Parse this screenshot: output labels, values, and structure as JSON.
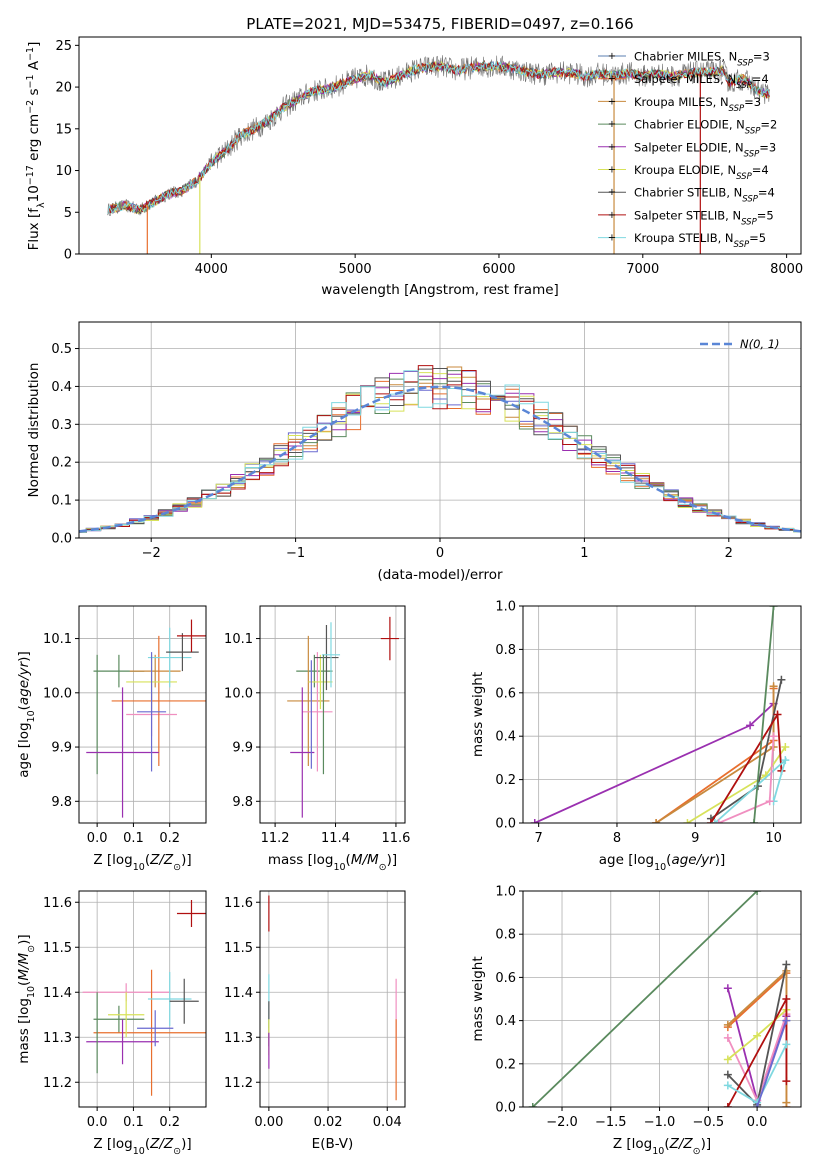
{
  "page_title": "PLATE=2021, MJD=53475, FIBERID=0497, z=0.166",
  "chart_data": [
    {
      "id": "spectrum",
      "type": "line",
      "title": "PLATE=2021, MJD=53475, FIBERID=0497, z=0.166",
      "xlabel": "wavelength [Angstrom, rest frame]",
      "ylabel": "Flux [f_λ10^-17 erg cm^-2 s^-1 A^-1]",
      "xlim": [
        3080,
        8100
      ],
      "ylim": [
        0,
        26
      ],
      "xticks": [
        4000,
        5000,
        6000,
        7000,
        8000
      ],
      "yticks": [
        0,
        5,
        10,
        15,
        20,
        25
      ],
      "grid": false,
      "legend_position": "top-right",
      "continuum_anchors": [
        [
          3280,
          5.3
        ],
        [
          3400,
          5.8
        ],
        [
          3500,
          5.3
        ],
        [
          3600,
          6.2
        ],
        [
          3700,
          7.2
        ],
        [
          3800,
          7.6
        ],
        [
          3900,
          8.8
        ],
        [
          4000,
          11.0
        ],
        [
          4100,
          12.3
        ],
        [
          4200,
          14.2
        ],
        [
          4300,
          15.0
        ],
        [
          4400,
          16.0
        ],
        [
          4500,
          17.5
        ],
        [
          4600,
          18.5
        ],
        [
          4700,
          19.5
        ],
        [
          4800,
          19.7
        ],
        [
          4900,
          20.3
        ],
        [
          5000,
          21.0
        ],
        [
          5100,
          21.5
        ],
        [
          5200,
          20.5
        ],
        [
          5300,
          21.2
        ],
        [
          5400,
          22.0
        ],
        [
          5500,
          22.4
        ],
        [
          5600,
          22.5
        ],
        [
          5700,
          22.0
        ],
        [
          5800,
          22.3
        ],
        [
          5900,
          22.5
        ],
        [
          6000,
          22.5
        ],
        [
          6100,
          22.2
        ],
        [
          6200,
          21.8
        ],
        [
          6300,
          21.5
        ],
        [
          6400,
          21.8
        ],
        [
          6500,
          21.7
        ],
        [
          6600,
          21.3
        ],
        [
          6700,
          21.6
        ],
        [
          6800,
          21.4
        ],
        [
          6900,
          21.7
        ],
        [
          7000,
          21.3
        ],
        [
          7100,
          21.6
        ],
        [
          7200,
          21.3
        ],
        [
          7300,
          21.6
        ],
        [
          7400,
          21.8
        ],
        [
          7500,
          21.8
        ],
        [
          7560,
          22.0
        ],
        [
          7600,
          20.5
        ],
        [
          7700,
          21.0
        ],
        [
          7800,
          19.5
        ],
        [
          7880,
          19.2
        ]
      ],
      "series": [
        {
          "name": "Chabrier MILES, N_SSP=3",
          "color": "#5b7fb0"
        },
        {
          "name": "Salpeter MILES, N_SSP=4",
          "color": "#e86f2e"
        },
        {
          "name": "Kroupa MILES, N_SSP=3",
          "color": "#c88a3e"
        },
        {
          "name": "Chabrier ELODIE, N_SSP=2",
          "color": "#5a8a5e"
        },
        {
          "name": "Salpeter ELODIE, N_SSP=3",
          "color": "#9a30b0"
        },
        {
          "name": "Kroupa ELODIE, N_SSP=4",
          "color": "#d7e25a"
        },
        {
          "name": "Chabrier STELIB, N_SSP=4",
          "color": "#555555"
        },
        {
          "name": "Salpeter STELIB, N_SSP=5",
          "color": "#b01010"
        },
        {
          "name": "Kroupa STELIB, N_SSP=5",
          "color": "#7fd8e0"
        }
      ],
      "dropouts": [
        [
          3555,
          "#e86f2e"
        ],
        [
          3920,
          "#d7e25a"
        ],
        [
          6800,
          "#c88a3e"
        ],
        [
          7400,
          "#b01010"
        ]
      ]
    },
    {
      "id": "residual-histogram",
      "type": "bar",
      "xlabel": "(data-model)/error",
      "ylabel": "Normed distribution",
      "xlim": [
        -2.5,
        2.5
      ],
      "ylim": [
        0,
        0.57
      ],
      "xticks": [
        -2,
        -1,
        0,
        1,
        2
      ],
      "yticks": [
        0.0,
        0.1,
        0.2,
        0.3,
        0.4,
        0.5
      ],
      "grid": true,
      "bin_width": 0.1,
      "legend": {
        "label": "N(0, 1)",
        "position": "top-right"
      },
      "series_colors": [
        "#6a6ad0",
        "#e86f2e",
        "#c88a3e",
        "#5a8a5e",
        "#9a30b0",
        "#d7e25a",
        "#555555",
        "#b01010",
        "#7fd8e0"
      ],
      "gaussian_color": "#5a86d6"
    },
    {
      "id": "age-vs-Z",
      "type": "scatter",
      "xlabel": "Z [log10(Z/Z⊙)]",
      "ylabel": "age [log10(age/yr)]",
      "xlim": [
        -0.05,
        0.3
      ],
      "ylim": [
        9.76,
        10.16
      ],
      "xticks": [
        0.0,
        0.1,
        0.2
      ],
      "yticks": [
        9.8,
        9.9,
        10.0,
        10.1
      ],
      "grid": true,
      "points": [
        {
          "x": 0.06,
          "xerr": 0.07,
          "y": 10.04,
          "yerr": 0.03,
          "color": "#5a8a5e"
        },
        {
          "x": 0.16,
          "xerr": 0.07,
          "y": 10.04,
          "yerr": 0.03,
          "color": "#c88a3e"
        },
        {
          "x": 0.0,
          "xerr": 0.0,
          "y": 9.96,
          "yerr": 0.11,
          "color": "#5a8a5e"
        },
        {
          "x": 0.15,
          "xerr": 0.07,
          "y": 9.96,
          "yerr": 0.04,
          "color": "#f08fc0"
        },
        {
          "x": 0.17,
          "xerr": 0.13,
          "y": 9.985,
          "yerr": 0.12,
          "color": "#e86f2e"
        },
        {
          "x": 0.07,
          "xerr": 0.1,
          "y": 9.89,
          "yerr": 0.12,
          "color": "#9a30b0"
        },
        {
          "x": 0.15,
          "xerr": 0.07,
          "y": 10.02,
          "yerr": 0.05,
          "color": "#d7e25a"
        },
        {
          "x": 0.2,
          "xerr": 0.06,
          "y": 10.065,
          "yerr": 0.055,
          "color": "#7fd8e0"
        },
        {
          "x": 0.235,
          "xerr": 0.045,
          "y": 10.075,
          "yerr": 0.035,
          "color": "#555555"
        },
        {
          "x": 0.26,
          "xerr": 0.04,
          "y": 10.105,
          "yerr": 0.03,
          "color": "#b01010"
        },
        {
          "x": 0.15,
          "xerr": 0.04,
          "y": 9.965,
          "yerr": 0.11,
          "color": "#6a6ad0"
        }
      ]
    },
    {
      "id": "age-vs-mass",
      "type": "scatter",
      "xlabel": "mass [log10(M/M⊙)]",
      "ylabel": "",
      "xlim": [
        11.15,
        11.63
      ],
      "ylim": [
        9.76,
        10.16
      ],
      "xticks": [
        11.2,
        11.4,
        11.6
      ],
      "yticks": [
        9.8,
        9.9,
        10.0,
        10.1
      ],
      "grid": true,
      "points": [
        {
          "x": 11.33,
          "xerr": 0.06,
          "y": 10.04,
          "yerr": 0.03,
          "color": "#5a8a5e"
        },
        {
          "x": 11.31,
          "xerr": 0.07,
          "y": 9.985,
          "yerr": 0.12,
          "color": "#c88a3e"
        },
        {
          "x": 11.34,
          "xerr": 0.05,
          "y": 9.965,
          "yerr": 0.11,
          "color": "#f08fc0"
        },
        {
          "x": 11.29,
          "xerr": 0.04,
          "y": 9.89,
          "yerr": 0.12,
          "color": "#9a30b0"
        },
        {
          "x": 11.35,
          "xerr": 0.04,
          "y": 10.02,
          "yerr": 0.05,
          "color": "#d7e25a"
        },
        {
          "x": 11.37,
          "xerr": 0.04,
          "y": 10.065,
          "yerr": 0.06,
          "color": "#555555"
        },
        {
          "x": 11.385,
          "xerr": 0.03,
          "y": 10.07,
          "yerr": 0.06,
          "color": "#7fd8e0"
        },
        {
          "x": 11.58,
          "xerr": 0.03,
          "y": 10.1,
          "yerr": 0.04,
          "color": "#b01010"
        },
        {
          "x": 11.36,
          "xerr": 0.0,
          "y": 9.96,
          "yerr": 0.11,
          "color": "#5a8a5e"
        },
        {
          "x": 11.32,
          "xerr": 0.0,
          "y": 9.96,
          "yerr": 0.1,
          "color": "#6a6ad0"
        }
      ]
    },
    {
      "id": "massweight-vs-age",
      "type": "line",
      "xlabel": "age [log10(age/yr)]",
      "ylabel": "mass weight",
      "xlim": [
        6.8,
        10.35
      ],
      "ylim": [
        0,
        1.0
      ],
      "xticks": [
        7,
        8,
        9,
        10
      ],
      "yticks": [
        0.0,
        0.2,
        0.4,
        0.6,
        0.8,
        1.0
      ],
      "grid": true,
      "series": [
        {
          "color": "#9a30b0",
          "points": [
            [
              6.95,
              0.0
            ],
            [
              9.7,
              0.45
            ],
            [
              10.0,
              0.55
            ]
          ]
        },
        {
          "color": "#e86f2e",
          "points": [
            [
              8.5,
              0.0
            ],
            [
              10.0,
              0.38
            ],
            [
              10.0,
              0.62
            ]
          ]
        },
        {
          "color": "#c88a3e",
          "points": [
            [
              8.5,
              0.0
            ],
            [
              10.0,
              0.35
            ],
            [
              10.0,
              0.63
            ]
          ]
        },
        {
          "color": "#d7e25a",
          "points": [
            [
              8.9,
              0.0
            ],
            [
              9.9,
              0.22
            ],
            [
              10.15,
              0.35
            ]
          ]
        },
        {
          "color": "#555555",
          "points": [
            [
              9.2,
              0.02
            ],
            [
              9.8,
              0.17
            ],
            [
              10.1,
              0.66
            ]
          ]
        },
        {
          "color": "#b01010",
          "points": [
            [
              9.2,
              0.0
            ],
            [
              10.05,
              0.5
            ],
            [
              10.1,
              0.24
            ]
          ]
        },
        {
          "color": "#7fd8e0",
          "points": [
            [
              9.25,
              0.0
            ],
            [
              10.15,
              0.29
            ],
            [
              10.0,
              0.1
            ]
          ]
        },
        {
          "color": "#f08fc0",
          "points": [
            [
              9.3,
              0.0
            ],
            [
              9.95,
              0.1
            ],
            [
              10.0,
              0.4
            ]
          ]
        },
        {
          "color": "#5a8a5e",
          "points": [
            [
              9.75,
              0.0
            ],
            [
              10.0,
              1.0
            ]
          ]
        }
      ]
    },
    {
      "id": "mass-vs-Z",
      "type": "scatter",
      "xlabel": "Z [log10(Z/Z⊙)]",
      "ylabel": "mass [log10(M/M⊙)]",
      "xlim": [
        -0.05,
        0.3
      ],
      "ylim": [
        11.145,
        11.625
      ],
      "xticks": [
        0.0,
        0.1,
        0.2
      ],
      "yticks": [
        11.2,
        11.3,
        11.4,
        11.5,
        11.6
      ],
      "grid": true,
      "points": [
        {
          "x": 0.06,
          "xerr": 0.07,
          "y": 11.34,
          "yerr": 0.03,
          "color": "#5a8a5e"
        },
        {
          "x": 0.08,
          "xerr": 0.12,
          "y": 11.4,
          "yerr": 0.02,
          "color": "#f08fc0"
        },
        {
          "x": 0.15,
          "xerr": 0.16,
          "y": 11.31,
          "yerr": 0.14,
          "color": "#e86f2e"
        },
        {
          "x": 0.07,
          "xerr": 0.1,
          "y": 11.29,
          "yerr": 0.05,
          "color": "#9a30b0"
        },
        {
          "x": 0.08,
          "xerr": 0.05,
          "y": 11.35,
          "yerr": 0.05,
          "color": "#d7e25a"
        },
        {
          "x": 0.16,
          "xerr": 0.05,
          "y": 11.32,
          "yerr": 0.04,
          "color": "#6a6ad0"
        },
        {
          "x": 0.2,
          "xerr": 0.06,
          "y": 11.385,
          "yerr": 0.06,
          "color": "#7fd8e0"
        },
        {
          "x": 0.24,
          "xerr": 0.04,
          "y": 11.38,
          "yerr": 0.05,
          "color": "#555555"
        },
        {
          "x": 0.26,
          "xerr": 0.04,
          "y": 11.575,
          "yerr": 0.03,
          "color": "#b01010"
        },
        {
          "x": 0.0,
          "xerr": 0.0,
          "y": 11.31,
          "yerr": 0.09,
          "color": "#5a8a5e"
        }
      ]
    },
    {
      "id": "mass-vs-ebv",
      "type": "scatter",
      "xlabel": "E(B-V)",
      "ylabel": "",
      "xlim": [
        -0.003,
        0.046
      ],
      "ylim": [
        11.145,
        11.625
      ],
      "xticks": [
        0.0,
        0.02,
        0.04
      ],
      "yticks": [
        11.2,
        11.3,
        11.4,
        11.5,
        11.6
      ],
      "grid": true,
      "points": [
        {
          "x": 0.0,
          "xerr": 0.0,
          "y": 11.575,
          "yerr": 0.04,
          "color": "#b01010"
        },
        {
          "x": 0.0,
          "xerr": 0.0,
          "y": 11.38,
          "yerr": 0.06,
          "color": "#7fd8e0"
        },
        {
          "x": 0.0,
          "xerr": 0.0,
          "y": 11.33,
          "yerr": 0.05,
          "color": "#555555"
        },
        {
          "x": 0.0,
          "xerr": 0.0,
          "y": 11.3,
          "yerr": 0.04,
          "color": "#d7e25a"
        },
        {
          "x": 0.0,
          "xerr": 0.0,
          "y": 11.27,
          "yerr": 0.04,
          "color": "#9a30b0"
        },
        {
          "x": 0.043,
          "xerr": 0.0,
          "y": 11.34,
          "yerr": 0.09,
          "color": "#f08fc0"
        },
        {
          "x": 0.043,
          "xerr": 0.0,
          "y": 11.25,
          "yerr": 0.09,
          "color": "#e86f2e"
        }
      ]
    },
    {
      "id": "massweight-vs-Z",
      "type": "line",
      "xlabel": "Z [log10(Z/Z⊙)]",
      "ylabel": "mass weight",
      "xlim": [
        -2.4,
        0.45
      ],
      "ylim": [
        0,
        1.0
      ],
      "xticks": [
        -2.0,
        -1.5,
        -1.0,
        -0.5,
        0.0
      ],
      "yticks": [
        0.0,
        0.2,
        0.4,
        0.6,
        0.8,
        1.0
      ],
      "grid": true,
      "series": [
        {
          "color": "#5a8a5e",
          "points": [
            [
              -2.3,
              0.0
            ],
            [
              0.0,
              1.0
            ]
          ]
        },
        {
          "color": "#9a30b0",
          "points": [
            [
              -0.3,
              0.55
            ],
            [
              0.0,
              0.03
            ],
            [
              0.3,
              0.42
            ]
          ]
        },
        {
          "color": "#e86f2e",
          "points": [
            [
              -0.3,
              0.37
            ],
            [
              0.3,
              0.62
            ],
            [
              0.3,
              0.0
            ]
          ]
        },
        {
          "color": "#c88a3e",
          "points": [
            [
              -0.3,
              0.38
            ],
            [
              0.3,
              0.63
            ],
            [
              0.3,
              0.02
            ]
          ]
        },
        {
          "color": "#f08fc0",
          "points": [
            [
              -0.3,
              0.32
            ],
            [
              0.0,
              0.03
            ],
            [
              0.3,
              0.43
            ]
          ]
        },
        {
          "color": "#d7e25a",
          "points": [
            [
              -0.3,
              0.22
            ],
            [
              0.0,
              0.33
            ],
            [
              0.3,
              0.45
            ]
          ]
        },
        {
          "color": "#555555",
          "points": [
            [
              -0.3,
              0.15
            ],
            [
              0.0,
              0.01
            ],
            [
              0.3,
              0.66
            ]
          ]
        },
        {
          "color": "#b01010",
          "points": [
            [
              -0.3,
              0.0
            ],
            [
              0.3,
              0.5
            ],
            [
              0.3,
              0.12
            ]
          ]
        },
        {
          "color": "#7fd8e0",
          "points": [
            [
              -0.3,
              0.1
            ],
            [
              0.0,
              0.02
            ],
            [
              0.3,
              0.29
            ]
          ]
        },
        {
          "color": "#6a6ad0",
          "points": [
            [
              0.0,
              0.0
            ],
            [
              0.3,
              0.4
            ]
          ]
        }
      ]
    }
  ]
}
